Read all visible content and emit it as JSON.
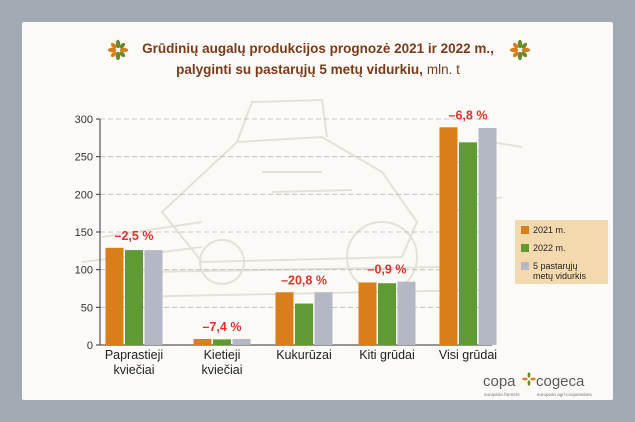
{
  "chart_data": {
    "type": "bar",
    "title_line1": "Grūdinių augalų produkcijos prognozė 2021 ir 2022 m.,",
    "title_line2": "palyginti su pastarųjų 5 metų vidurkiu,",
    "title_unit": "mln. t",
    "categories": [
      [
        "Paprastieji",
        "kviečiai"
      ],
      [
        "Kietieji",
        "kviečiai"
      ],
      [
        "Kukurūzai"
      ],
      [
        "Kiti grūdai"
      ],
      [
        "Visi grūdai"
      ]
    ],
    "series": [
      {
        "name": "2021 m.",
        "color": "#d97e1c",
        "values": [
          129,
          8,
          70,
          83,
          289
        ]
      },
      {
        "name": "2022 m.",
        "color": "#5f9a34",
        "values": [
          126,
          7.5,
          55,
          82,
          269
        ]
      },
      {
        "name": [
          "5 pastarųjų",
          "metų vidurkis"
        ],
        "color": "#b4b8c4",
        "values": [
          126,
          8,
          70,
          84,
          288
        ]
      }
    ],
    "change_labels": [
      "–2,5 %",
      "–7,4 %",
      "–20,8 %",
      "–0,9 %",
      "–6,8 %"
    ],
    "ylim": [
      0,
      300
    ],
    "yticks": [
      0,
      50,
      100,
      150,
      200,
      250,
      300
    ],
    "grid": true,
    "legend_position": "right",
    "colors": {
      "accent_red": "#e0322b",
      "title_brown": "#7a3a1c",
      "decor_green": "#6a8a2a",
      "decor_orange": "#d97e1c"
    }
  },
  "logo": {
    "copa": "copa",
    "cogeca": "cogeca",
    "copa_sub": "european farmers",
    "cogeca_sub": "european agri-cooperatives"
  }
}
